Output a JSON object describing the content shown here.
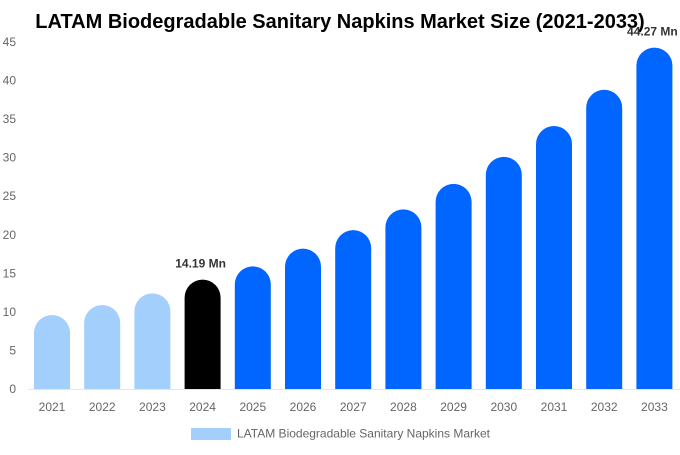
{
  "chart_data": {
    "type": "bar",
    "title": "LATAM Biodegradable Sanitary Napkins Market Size (2021-2033)",
    "xlabel": "",
    "ylabel": "",
    "ylim": [
      0,
      45
    ],
    "yticks": [
      0,
      5,
      10,
      15,
      20,
      25,
      30,
      35,
      40,
      45
    ],
    "grid": false,
    "legend_position": "bottom",
    "categories": [
      "2021",
      "2022",
      "2023",
      "2024",
      "2025",
      "2026",
      "2027",
      "2028",
      "2029",
      "2030",
      "2031",
      "2032",
      "2033"
    ],
    "series": [
      {
        "name": "LATAM Biodegradable Sanitary Napkins Market",
        "values": [
          9.6,
          10.9,
          12.4,
          14.19,
          15.9,
          18.2,
          20.6,
          23.3,
          26.6,
          30.1,
          34.1,
          38.8,
          44.27
        ]
      }
    ],
    "data_labels": {
      "3": "14.19 Mn",
      "12": "44.27 Mn"
    },
    "colors": {
      "historical": "#a3cffd",
      "current": "#000000",
      "forecast": "#0066ff",
      "legend": "#a3cffd"
    },
    "bar_color_groups": [
      "historical",
      "historical",
      "historical",
      "current",
      "forecast",
      "forecast",
      "forecast",
      "forecast",
      "forecast",
      "forecast",
      "forecast",
      "forecast",
      "forecast"
    ]
  }
}
